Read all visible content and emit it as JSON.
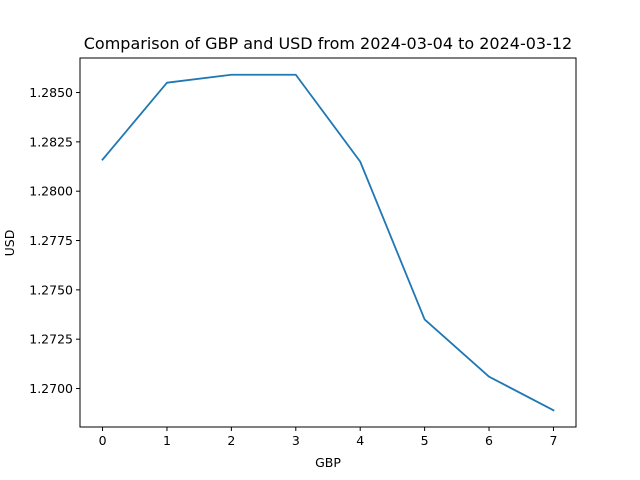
{
  "chart_data": {
    "type": "line",
    "title": "Comparison of GBP and USD from 2024-03-04 to 2024-03-12",
    "xlabel": "GBP",
    "ylabel": "USD",
    "x": [
      0,
      1,
      2,
      3,
      4,
      5,
      6,
      7
    ],
    "series": [
      {
        "values": [
          1.2816,
          1.2855,
          1.2859,
          1.2859,
          1.2815,
          1.2735,
          1.2706,
          1.2689
        ],
        "color": "#1f77b4"
      }
    ],
    "xticks": [
      0,
      1,
      2,
      3,
      4,
      5,
      6,
      7
    ],
    "xtick_labels": [
      "0",
      "1",
      "2",
      "3",
      "4",
      "5",
      "6",
      "7"
    ],
    "yticks": [
      1.27,
      1.2725,
      1.275,
      1.2775,
      1.28,
      1.2825,
      1.285
    ],
    "ytick_labels": [
      "1.2700",
      "1.2725",
      "1.2750",
      "1.2775",
      "1.2800",
      "1.2825",
      "1.2850"
    ],
    "xlim": [
      -0.35,
      7.35
    ],
    "ylim": [
      1.26805,
      1.28675
    ],
    "grid": false,
    "legend": false
  }
}
